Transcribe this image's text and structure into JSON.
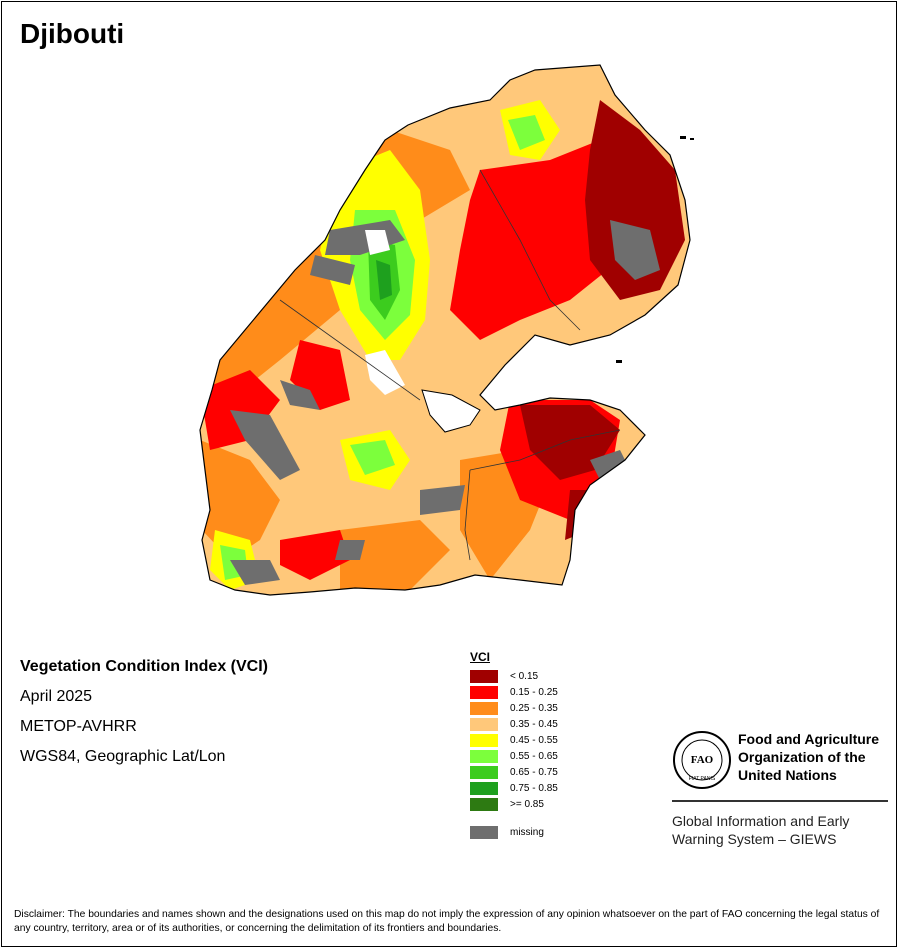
{
  "title": "Djibouti",
  "info": {
    "index_name": "Vegetation Condition Index (VCI)",
    "period": "April 2025",
    "sensor": "METOP-AVHRR",
    "projection": "WGS84, Geographic Lat/Lon"
  },
  "legend": {
    "title": "VCI",
    "classes": [
      {
        "label": "< 0.15",
        "color": "#a00000"
      },
      {
        "label": "0.15 - 0.25",
        "color": "#ff0000"
      },
      {
        "label": "0.25 - 0.35",
        "color": "#ff8c1a"
      },
      {
        "label": "0.35 - 0.45",
        "color": "#ffc87a"
      },
      {
        "label": "0.45 - 0.55",
        "color": "#ffff00"
      },
      {
        "label": "0.55 - 0.65",
        "color": "#7cff3c"
      },
      {
        "label": "0.65 - 0.75",
        "color": "#3ccc1e"
      },
      {
        "label": "0.75 - 0.85",
        "color": "#1ea01e"
      },
      {
        "label": ">= 0.85",
        "color": "#2d7a12"
      }
    ],
    "missing": {
      "label": "missing",
      "color": "#6e6e6e"
    }
  },
  "organization": {
    "logo_text": "FAO",
    "logo_motto": "FIAT PANIS",
    "name": "Food and Agriculture Organization of the United Nations",
    "name_lines": [
      "Food and Agriculture",
      "Organization of the",
      "United Nations"
    ],
    "system_lines": [
      "Global Information and Early",
      "Warning System – GIEWS"
    ]
  },
  "disclaimer": "Disclaimer: The boundaries and names shown and the designations used on this map do not imply the expression of any opinion whatsoever on the part of FAO concerning the legal status of any country, territory, area or of its authorities, or concerning the delimitation of its frontiers and boundaries."
}
